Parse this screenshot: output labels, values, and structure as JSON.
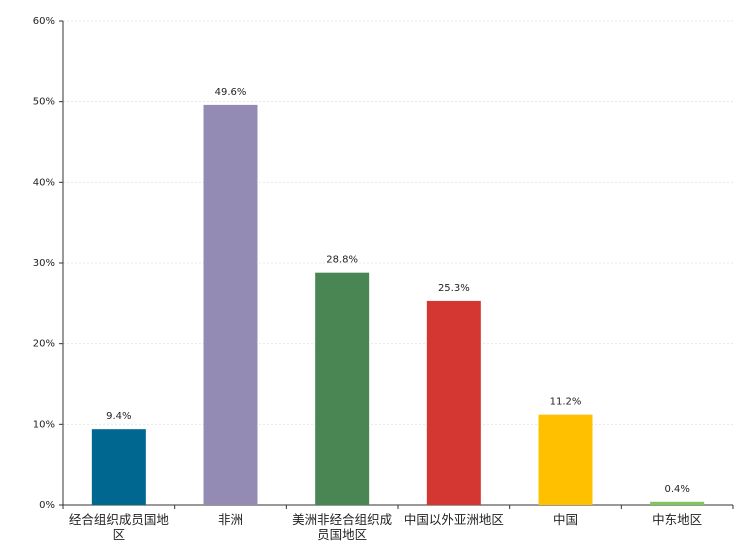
{
  "chart_data": {
    "type": "bar",
    "categories": [
      "经合组织成员国地区",
      "非洲",
      "美洲非经合组织成员国地区",
      "中国以外亚洲地区",
      "中国",
      "中东地区"
    ],
    "values": [
      9.4,
      49.6,
      28.8,
      25.3,
      11.2,
      0.4
    ],
    "value_labels": [
      "9.4%",
      "49.6%",
      "28.8%",
      "25.3%",
      "11.2%",
      "0.4%"
    ],
    "colors": [
      "#006890",
      "#938bb4",
      "#4a8654",
      "#d43732",
      "#ffc000",
      "#7dc75b"
    ],
    "ylim": [
      0,
      60
    ],
    "yticks": [
      {
        "value": 0,
        "label": "0%"
      },
      {
        "value": 10,
        "label": "10%"
      },
      {
        "value": 20,
        "label": "20%"
      },
      {
        "value": 30,
        "label": "30%"
      },
      {
        "value": 40,
        "label": "40%"
      },
      {
        "value": 50,
        "label": "50%"
      },
      {
        "value": 60,
        "label": "60%"
      }
    ],
    "grid": true
  }
}
